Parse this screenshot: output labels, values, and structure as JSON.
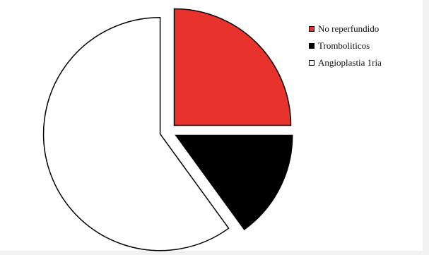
{
  "chart_data": {
    "type": "pie",
    "title": "",
    "exploded": true,
    "start_angle_deg": 0,
    "direction": "clockwise",
    "slices": [
      {
        "label": "No reperfundido",
        "value": 25,
        "color": "#e8322c"
      },
      {
        "label": "Tromboliticos",
        "value": 15,
        "color": "#000000"
      },
      {
        "label": "Angioplastia 1ria",
        "value": 60,
        "color": "#ffffff"
      }
    ],
    "legend": {
      "position": "right",
      "entries": [
        "No reperfundido",
        "Tromboliticos",
        "Angioplastia 1ria"
      ]
    },
    "slice_stroke": "#000000"
  }
}
